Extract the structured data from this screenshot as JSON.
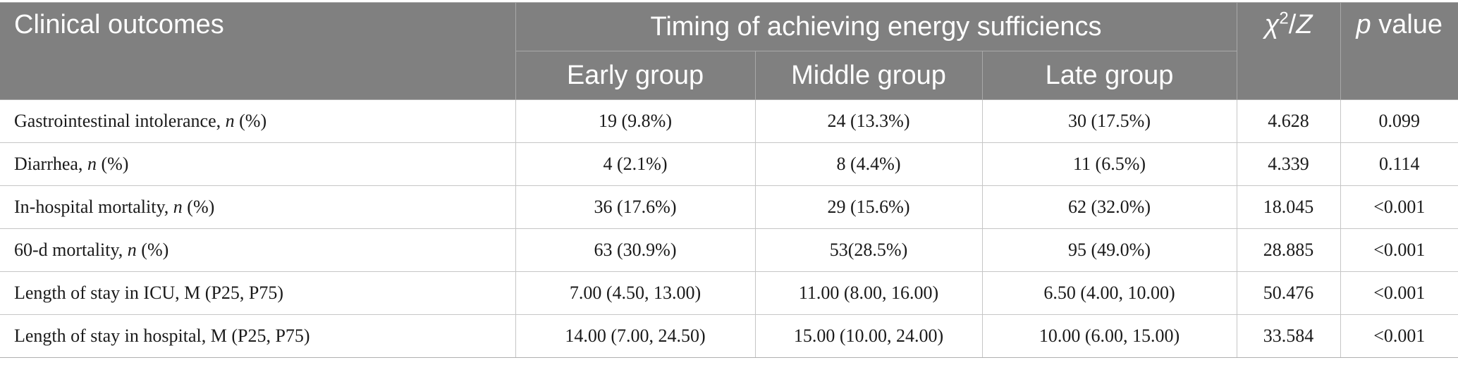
{
  "header": {
    "col_outcome": "Clinical outcomes",
    "col_timing": "Timing of achieving energy sufficiencs",
    "col_stat_chi": "χ",
    "col_stat_sup": "2",
    "col_stat_slash": "/",
    "col_stat_z": "Z",
    "col_p_italic": "p",
    "col_p_rest": " value",
    "sub_early": "Early group",
    "sub_middle": "Middle group",
    "sub_late": "Late group"
  },
  "rows": [
    {
      "label": "Gastrointestinal intolerance, ",
      "label_italic": "n",
      "label_suffix": " (%)",
      "early": "19 (9.8%)",
      "middle": "24 (13.3%)",
      "late": "30 (17.5%)",
      "stat": "4.628",
      "p": "0.099"
    },
    {
      "label": "Diarrhea, ",
      "label_italic": "n",
      "label_suffix": " (%)",
      "early": "4 (2.1%)",
      "middle": "8 (4.4%)",
      "late": "11 (6.5%)",
      "stat": "4.339",
      "p": "0.114"
    },
    {
      "label": "In-hospital mortality, ",
      "label_italic": "n",
      "label_suffix": " (%)",
      "early": "36 (17.6%)",
      "middle": "29 (15.6%)",
      "late": "62 (32.0%)",
      "stat": "18.045",
      "p": "<0.001"
    },
    {
      "label": "60-d mortality, ",
      "label_italic": "n",
      "label_suffix": " (%)",
      "early": "63 (30.9%)",
      "middle": "53(28.5%)",
      "late": "95 (49.0%)",
      "stat": "28.885",
      "p": "<0.001"
    },
    {
      "label": "Length of stay in ICU, M (P25, P75)",
      "label_italic": "",
      "label_suffix": "",
      "early": "7.00 (4.50, 13.00)",
      "middle": "11.00 (8.00, 16.00)",
      "late": "6.50 (4.00, 10.00)",
      "stat": "50.476",
      "p": "<0.001"
    },
    {
      "label": "Length of stay in hospital, M (P25, P75)",
      "label_italic": "",
      "label_suffix": "",
      "early": "14.00 (7.00, 24.50)",
      "middle": "15.00 (10.00, 24.00)",
      "late": "10.00 (6.00, 15.00)",
      "stat": "33.584",
      "p": "<0.001"
    }
  ],
  "colors": {
    "header_bg": "#808080",
    "header_text": "#ffffff",
    "body_text": "#1a1a1a",
    "grid_line": "#c6c6c6"
  }
}
